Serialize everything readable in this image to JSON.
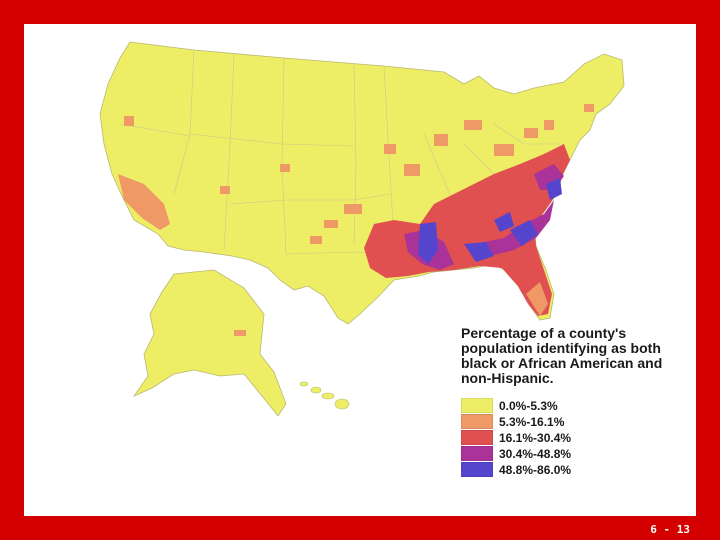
{
  "legend": {
    "title": "Percentage of a county's population identifying as both black or African American and non-Hispanic.",
    "items": [
      {
        "label": "0.0%-5.3%",
        "color": "#eeee66"
      },
      {
        "label": "5.3%-16.1%",
        "color": "#ee9966"
      },
      {
        "label": "16.1%-30.4%",
        "color": "#e05050"
      },
      {
        "label": "30.4%-48.8%",
        "color": "#aa3399"
      },
      {
        "label": "48.8%-86.0%",
        "color": "#5544cc"
      }
    ]
  },
  "slide_number": "6 - 13"
}
